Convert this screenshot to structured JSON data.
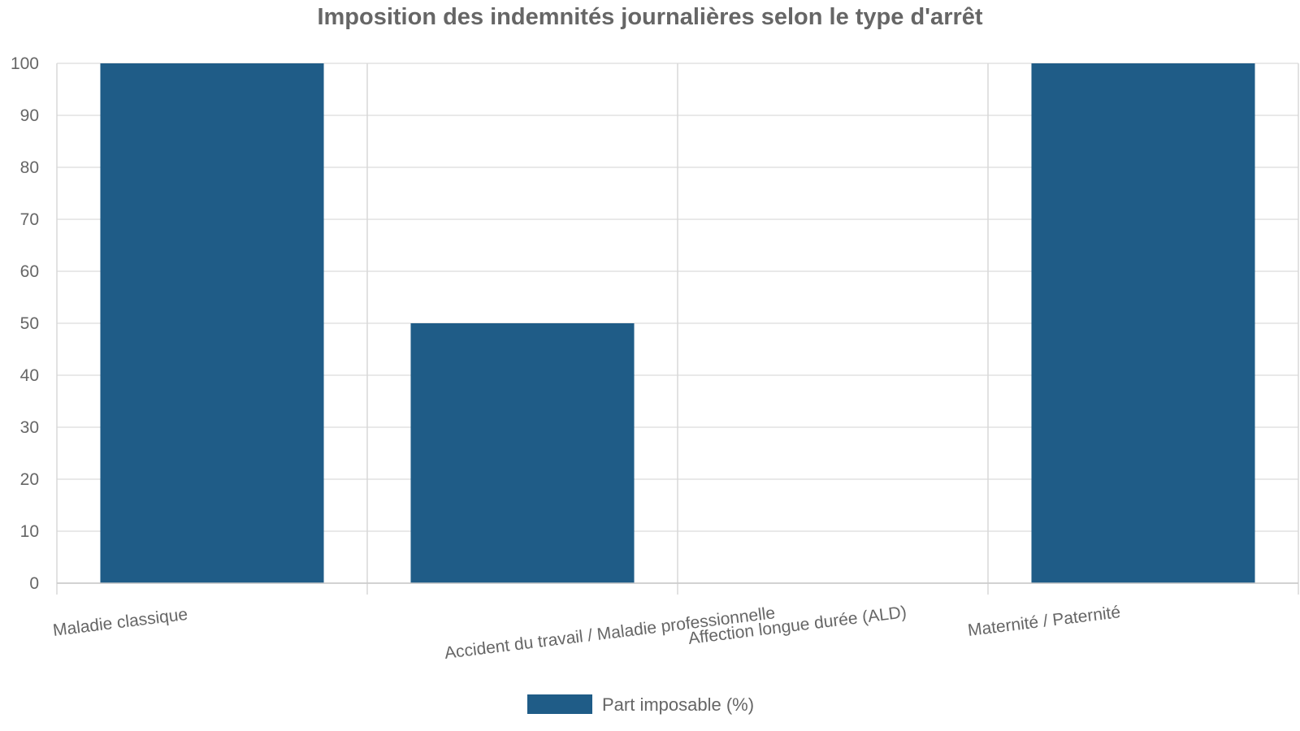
{
  "chart_data": {
    "type": "bar",
    "title": "Imposition des indemnités journalières selon le type d'arrêt",
    "categories": [
      "Maladie classique",
      "Accident du travail / Maladie professionnelle",
      "Affection longue durée (ALD)",
      "Maternité / Paternité"
    ],
    "series": [
      {
        "name": "Part imposable (%)",
        "values": [
          100,
          50,
          0,
          100
        ],
        "color": "#1f5c87"
      }
    ],
    "ylim": [
      0,
      100
    ],
    "yticks": [
      0,
      10,
      20,
      30,
      40,
      50,
      60,
      70,
      80,
      90,
      100
    ],
    "grid": true,
    "legend_position": "bottom-center"
  }
}
